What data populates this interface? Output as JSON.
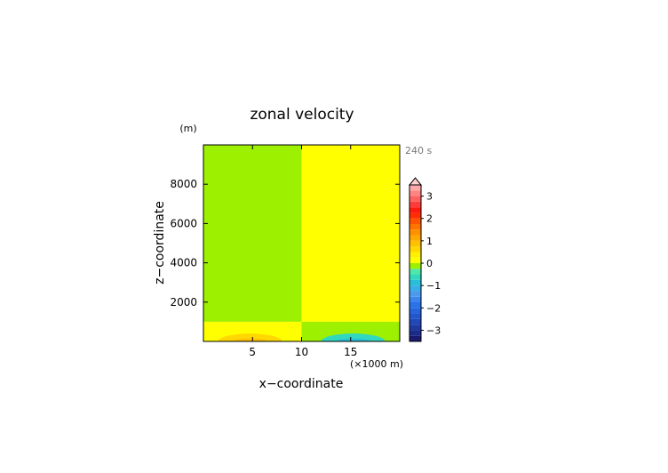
{
  "chart_data": {
    "type": "heatmap",
    "title": "zonal velocity",
    "time_label": "240 s",
    "xlabel": "x−coordinate",
    "ylabel": "z−coordinate",
    "x_unit_label": "(×1000 m)",
    "y_unit_label": "(m)",
    "xlim": [
      0,
      20
    ],
    "ylim": [
      0,
      10000
    ],
    "x_ticks": [
      5,
      10,
      15
    ],
    "y_ticks": [
      2000,
      4000,
      6000,
      8000
    ],
    "colorbar": {
      "levels": [
        -3.5,
        -3.25,
        -3,
        -2.75,
        -2.5,
        -2.25,
        -2,
        -1.75,
        -1.5,
        -1.25,
        -1,
        -0.75,
        -0.5,
        -0.25,
        0,
        0.25,
        0.5,
        0.75,
        1,
        1.25,
        1.5,
        1.75,
        2,
        2.25,
        2.5,
        2.75,
        3,
        3.25,
        3.5
      ],
      "colors": [
        "#1a1a70",
        "#1c2a8a",
        "#1e3aa0",
        "#2048b8",
        "#2256cc",
        "#2464dc",
        "#2a72e8",
        "#3a86ee",
        "#4a9af0",
        "#38aee8",
        "#28c0d8",
        "#30d8c0",
        "#50e8a8",
        "#9cf000",
        "#ffff00",
        "#fff000",
        "#ffd800",
        "#ffc000",
        "#ffa800",
        "#ff9000",
        "#ff7400",
        "#ff5400",
        "#ff2e00",
        "#ff1a10",
        "#ff3c3c",
        "#ff6060",
        "#ff8484",
        "#ffa8a8"
      ],
      "tick_values": [
        -3,
        -2,
        -1,
        0,
        1,
        2,
        3
      ],
      "tick_labels": [
        "−3",
        "−2",
        "−1",
        "0",
        "1",
        "2",
        "3"
      ],
      "extend": "max"
    },
    "regions": [
      {
        "x": [
          0,
          10
        ],
        "z": [
          1000,
          10000
        ],
        "value": -0.1
      },
      {
        "x": [
          10,
          20
        ],
        "z": [
          1000,
          10000
        ],
        "value": 0.1
      },
      {
        "x": [
          0,
          10
        ],
        "z": [
          0,
          1000
        ],
        "value": 0.2
      },
      {
        "x": [
          10,
          20
        ],
        "z": [
          0,
          1000
        ],
        "value": -0.2
      }
    ],
    "blobs": [
      {
        "x": [
          1.5,
          8
        ],
        "z": [
          0,
          400
        ],
        "value": 0.6
      },
      {
        "x": [
          12,
          18.5
        ],
        "z": [
          0,
          400
        ],
        "value": -0.6
      },
      {
        "x": [
          3,
          6.5
        ],
        "z": [
          0,
          150
        ],
        "value": 0.8
      },
      {
        "x": [
          13.5,
          17
        ],
        "z": [
          0,
          150
        ],
        "value": -0.8
      }
    ]
  }
}
